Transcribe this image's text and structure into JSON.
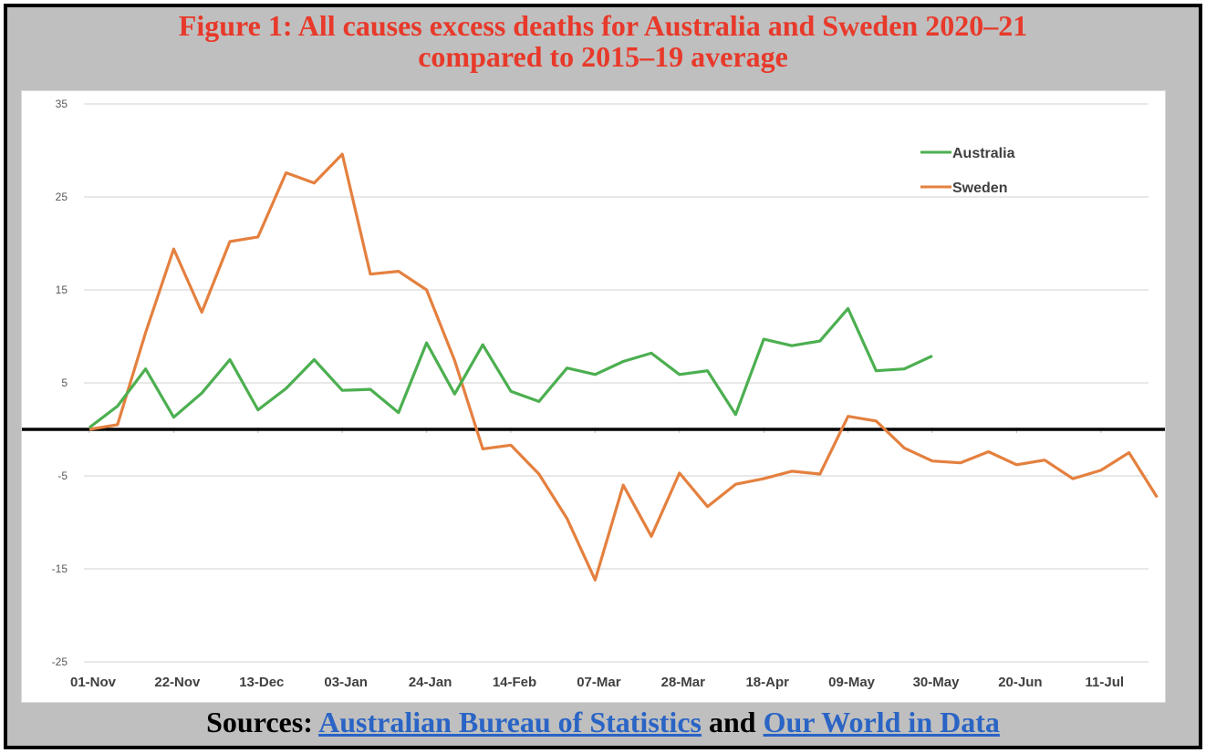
{
  "title_line1": "Figure 1: All causes excess deaths for Australia and Sweden 2020–21",
  "title_line2": "compared to 2015–19 average",
  "sources": {
    "prefix": "Sources:",
    "link1": "Australian Bureau of Statistics",
    "joiner": "and",
    "link2": "Our World in Data"
  },
  "colors": {
    "australia": "#4caf50",
    "sweden": "#e4803f",
    "title": "#e8392a",
    "link": "#2a64c5",
    "background": "#bfbfbf"
  },
  "chart_data": {
    "type": "line",
    "title": "Figure 1: All causes excess deaths for Australia and Sweden 2020–21 compared to 2015–19 average",
    "xlabel": "",
    "ylabel": "",
    "ylim": [
      -25,
      35
    ],
    "yticks": [
      35,
      25,
      15,
      5,
      -5,
      -15,
      -25
    ],
    "x_tick_labels": [
      "01-Nov",
      "22-Nov",
      "13-Dec",
      "03-Jan",
      "24-Jan",
      "14-Feb",
      "07-Mar",
      "28-Mar",
      "18-Apr",
      "09-May",
      "30-May",
      "20-Jun",
      "11-Jul"
    ],
    "x_tick_every_weeks": 3,
    "x_frequency": "weekly, starting 01-Nov-2020",
    "grid": true,
    "reference_line": 0,
    "legend_position": "top-right",
    "series": [
      {
        "name": "Australia",
        "values": [
          0.2,
          2.5,
          6.5,
          1.3,
          3.9,
          7.5,
          2.1,
          4.4,
          7.5,
          4.2,
          4.3,
          1.8,
          9.3,
          3.8,
          9.1,
          4.1,
          3.0,
          6.6,
          5.9,
          7.3,
          8.2,
          5.9,
          6.3,
          1.6,
          9.7,
          9.0,
          9.5,
          13.0,
          6.3,
          6.5,
          7.9
        ]
      },
      {
        "name": "Sweden",
        "values": [
          0.0,
          0.5,
          10.4,
          19.4,
          12.6,
          20.2,
          20.7,
          27.6,
          26.5,
          29.6,
          16.7,
          17.0,
          15.0,
          7.4,
          -2.1,
          -1.7,
          -4.8,
          -9.6,
          -16.2,
          -6.0,
          -11.5,
          -4.7,
          -8.3,
          -5.9,
          -5.3,
          -4.5,
          -4.8,
          1.4,
          0.9,
          -2.0,
          -3.4,
          -3.6,
          -2.4,
          -3.8,
          -3.3,
          -5.3,
          -4.4,
          -2.5,
          -7.3
        ]
      }
    ]
  }
}
